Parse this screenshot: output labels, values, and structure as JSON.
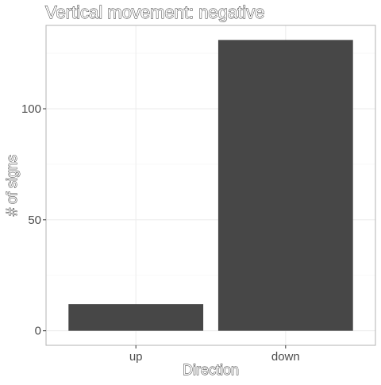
{
  "chart_data": {
    "type": "bar",
    "title": "Vertical movement: negative",
    "xlabel": "Direction",
    "ylabel": "# of signs",
    "categories": [
      "up",
      "down"
    ],
    "values": [
      12,
      131
    ],
    "ylim": [
      -6.55,
      137.55
    ],
    "yticks": [
      0,
      50,
      100
    ],
    "ytick_labels": [
      "0",
      "50",
      "100"
    ],
    "grid": true,
    "legend": "none",
    "colors": {
      "bar": "#474747",
      "grid_major": "#ebebeb",
      "grid_minor": "#f5f5f5",
      "panel_border": "#b3b3b3",
      "tick_text": "#4d4d4d",
      "tick_mark": "#333333"
    }
  }
}
